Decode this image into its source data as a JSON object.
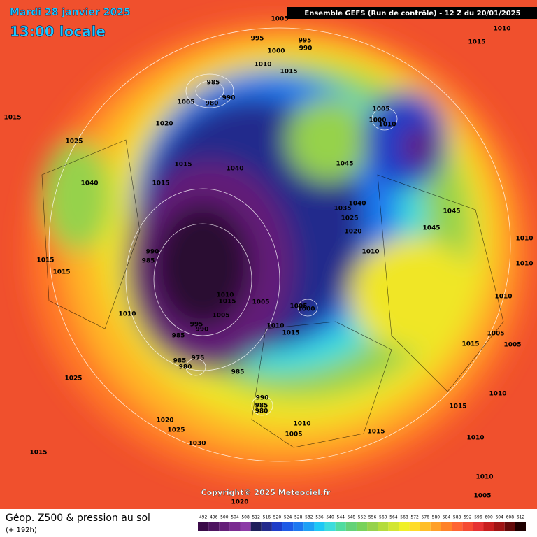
{
  "header": {
    "date": "Mardi 28 janvier 2025",
    "time": "13:00 locale",
    "run": "Ensemble GEFS  (Run de contrôle)  -  12 Z du 20/01/2025"
  },
  "map": {
    "pressure_labels": [
      1005,
      1010,
      1015,
      995,
      995,
      990,
      1000,
      1010,
      1015,
      985,
      1005,
      980,
      990,
      1005,
      1000,
      1010,
      1015,
      1020,
      1025,
      1015,
      1040,
      1045,
      1015,
      1040,
      1040,
      1035,
      1025,
      1020,
      1045,
      1045,
      1010,
      990,
      985,
      1015,
      1015,
      1010,
      1010,
      1010,
      1010,
      1015,
      1005,
      1005,
      1000,
      1005,
      995,
      990,
      1010,
      1015,
      985,
      1010,
      1005,
      1015,
      1005,
      975,
      985,
      980,
      985,
      1025,
      990,
      985,
      980,
      1015,
      1010,
      1020,
      1025,
      1010,
      1005,
      1015,
      1010,
      1030,
      1015,
      1010,
      1005,
      1020
    ],
    "copyright": "Copyright© 2025 Meteociel.fr"
  },
  "footer": {
    "title": "Géop. Z500 & pression au sol",
    "lead": "(+ 192h)",
    "scale": {
      "values": [
        492,
        496,
        500,
        504,
        508,
        512,
        516,
        520,
        524,
        528,
        532,
        536,
        540,
        544,
        548,
        552,
        556,
        560,
        564,
        568,
        572,
        576,
        580,
        584,
        588,
        592,
        596,
        600,
        604,
        608,
        612
      ],
      "colors": [
        "#3a0a48",
        "#4e1460",
        "#641e78",
        "#7a2a90",
        "#8c3aa6",
        "#1e1e5a",
        "#232a8c",
        "#1e3cc8",
        "#1e5ae6",
        "#1e78f0",
        "#1ea0f5",
        "#1ec8f5",
        "#3cdcdc",
        "#50dca0",
        "#64d278",
        "#78d25a",
        "#96d24b",
        "#b4dc3c",
        "#d2e632",
        "#f0f028",
        "#ffdc28",
        "#ffbe28",
        "#ffa028",
        "#ff8228",
        "#ff6432",
        "#f54b32",
        "#e63232",
        "#c81e1e",
        "#a01414",
        "#640a0a",
        "#1e0000"
      ]
    }
  }
}
